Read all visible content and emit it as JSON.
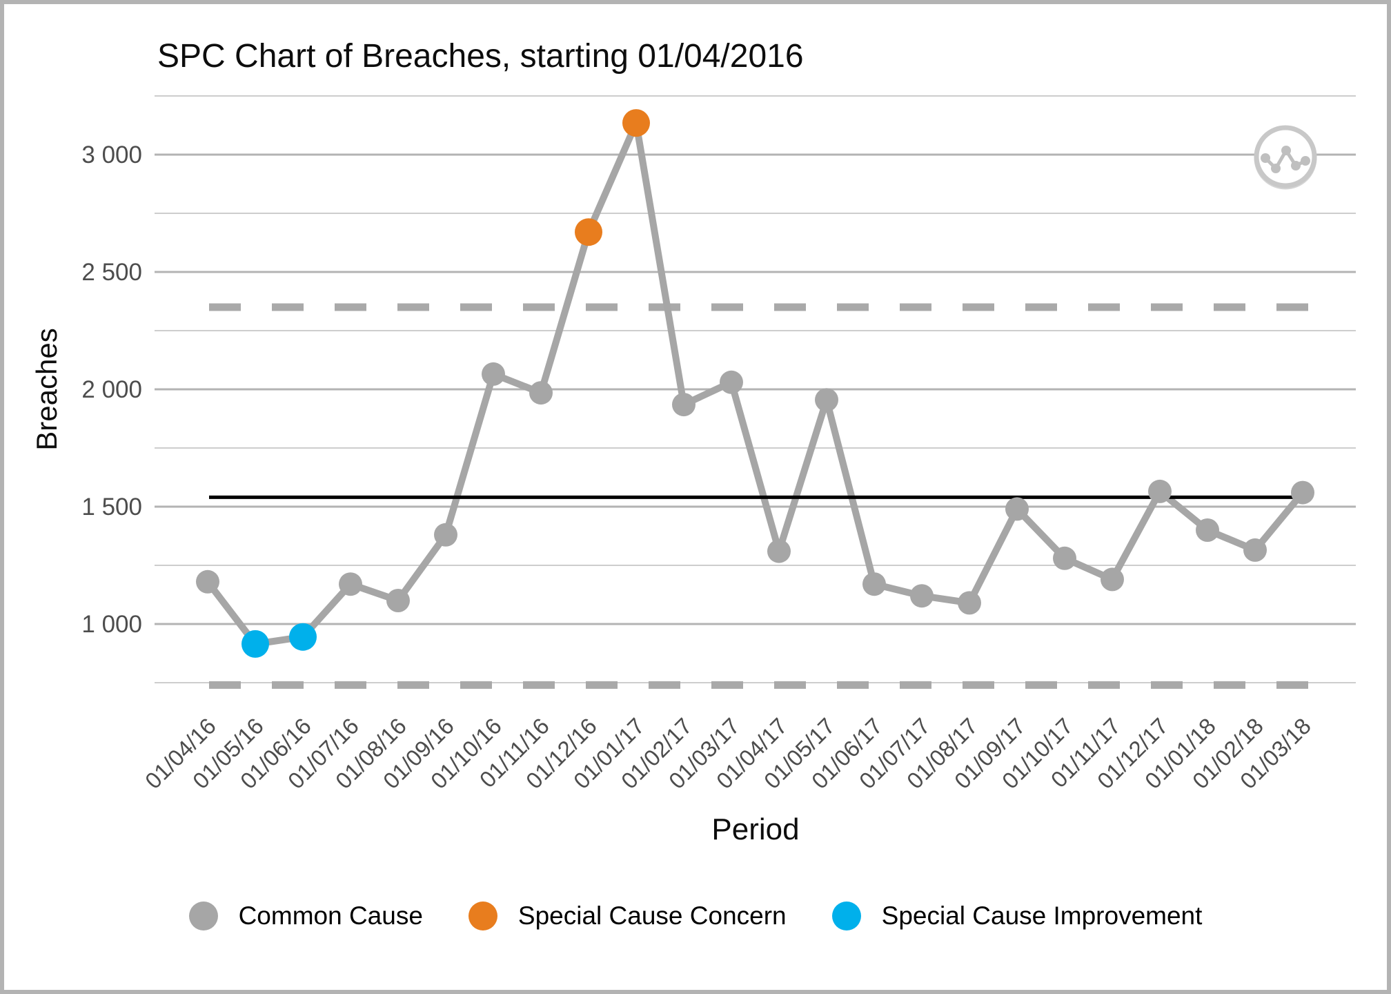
{
  "window": {
    "frame_color": "#b3b3b3",
    "background": "#ffffff"
  },
  "chart_data": {
    "type": "line",
    "title": "SPC Chart of Breaches, starting 01/04/2016",
    "xlabel": "Period",
    "ylabel": "Breaches",
    "x": [
      "01/04/16",
      "01/05/16",
      "01/06/16",
      "01/07/16",
      "01/08/16",
      "01/09/16",
      "01/10/16",
      "01/11/16",
      "01/12/16",
      "01/01/17",
      "01/02/17",
      "01/03/17",
      "01/04/17",
      "01/05/17",
      "01/06/17",
      "01/07/17",
      "01/08/17",
      "01/09/17",
      "01/10/17",
      "01/11/17",
      "01/12/17",
      "01/01/18",
      "01/02/18",
      "01/03/18"
    ],
    "series": [
      {
        "name": "Breaches",
        "values": [
          1180,
          915,
          945,
          1170,
          1100,
          1380,
          2065,
          1985,
          2670,
          3135,
          1935,
          2030,
          1310,
          1955,
          1170,
          1120,
          1090,
          1490,
          1280,
          1190,
          1565,
          1400,
          1315,
          1560
        ],
        "point_types": [
          "common",
          "improvement",
          "improvement",
          "common",
          "common",
          "common",
          "common",
          "common",
          "concern",
          "concern",
          "common",
          "common",
          "common",
          "common",
          "common",
          "common",
          "common",
          "common",
          "common",
          "common",
          "common",
          "common",
          "common",
          "common"
        ]
      }
    ],
    "center_line": 1540,
    "upper_control_limit": 2350,
    "lower_control_limit": 740,
    "ylim": [
      650,
      3300
    ],
    "y_ticks": [
      3000,
      2500,
      2000,
      1500,
      1000
    ],
    "y_tick_labels": [
      "3 000",
      "2 500",
      "2 000",
      "1 500",
      "1 000"
    ],
    "y_minor_gridlines": [
      3250,
      2750,
      2250,
      1750,
      1250,
      750
    ],
    "grid": "horizontal-only",
    "legend_position": "bottom",
    "legend": [
      {
        "label": "Common Cause",
        "type": "common",
        "color": "#a6a6a6"
      },
      {
        "label": "Special Cause Concern",
        "type": "concern",
        "color": "#e87d1e"
      },
      {
        "label": "Special Cause Improvement",
        "type": "improvement",
        "color": "#00b0eb"
      }
    ],
    "colors": {
      "line": "#a6a6a6",
      "common": "#a6a6a6",
      "concern": "#e87d1e",
      "improvement": "#00b0eb",
      "center_line": "#000000",
      "control_limit": "#a9a9a9",
      "grid_major": "#b3b3b3",
      "grid_minor": "#cdcdcd",
      "tick_text": "#4d4d4d",
      "icon_ring": "#c8c8c8",
      "icon_glyph": "#bfbfbf"
    }
  }
}
